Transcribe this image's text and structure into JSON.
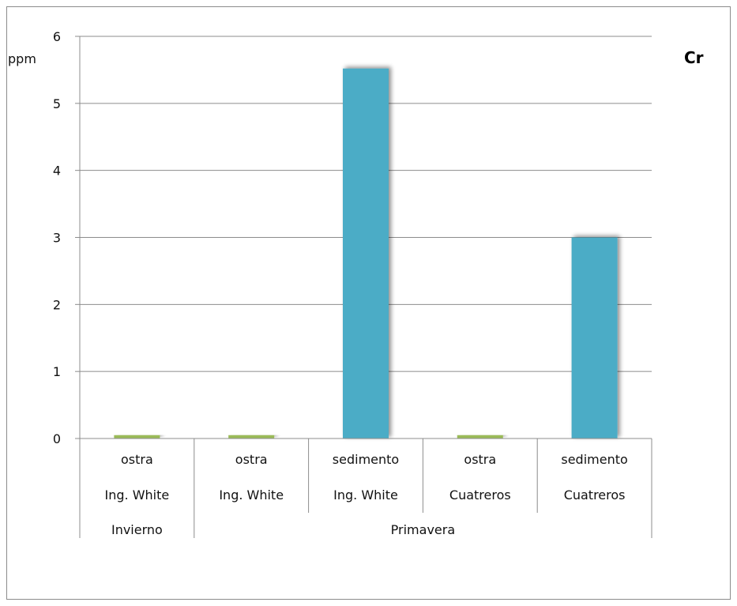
{
  "chart_data": {
    "type": "bar",
    "title": "Cr",
    "ylabel": "ppm",
    "xlabel": "",
    "ylim": [
      0,
      6
    ],
    "yticks": [
      0,
      1,
      2,
      3,
      4,
      5,
      6
    ],
    "grid": true,
    "categories": [
      {
        "level1": "ostra",
        "level2": "Ing. White",
        "group": "Invierno"
      },
      {
        "level1": "ostra",
        "level2": "Ing. White",
        "group": "Primavera"
      },
      {
        "level1": "sedimento",
        "level2": "Ing. White",
        "group": "Primavera"
      },
      {
        "level1": "ostra",
        "level2": "Cuatreros",
        "group": "Primavera"
      },
      {
        "level1": "sedimento",
        "level2": "Cuatreros",
        "group": "Primavera"
      }
    ],
    "groups": [
      "Invierno",
      "Primavera"
    ],
    "values": [
      0.05,
      0.05,
      5.52,
      0.05,
      3.0
    ],
    "colors": {
      "ostra": "#9bbb59",
      "sedimento": "#4bacc6",
      "gridline": "#8c8c8c"
    }
  }
}
